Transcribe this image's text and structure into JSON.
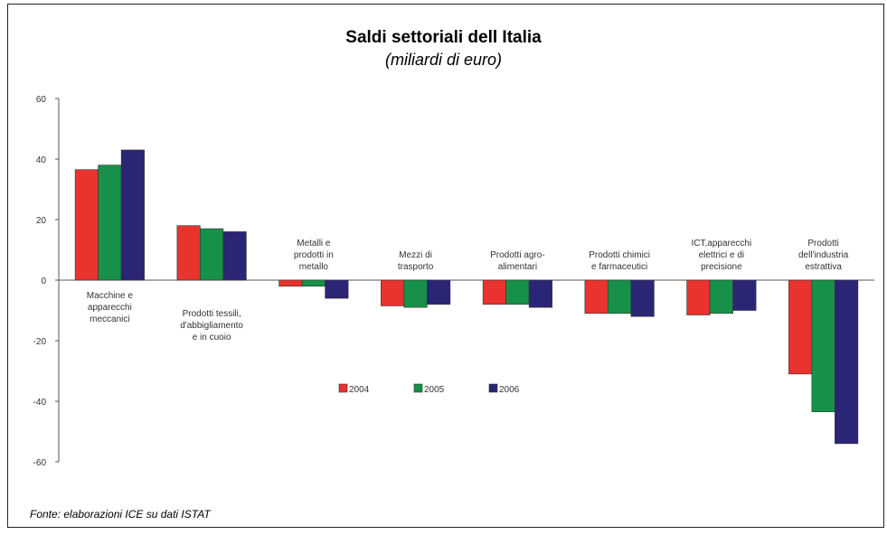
{
  "chart_data": {
    "type": "bar",
    "title": "Saldi settoriali dell Italia",
    "subtitle": "(miliardi di euro)",
    "source": "Fonte: elaborazioni ICE su dati ISTAT",
    "ylim": [
      -60,
      60
    ],
    "yticks": [
      -60,
      -40,
      -20,
      0,
      20,
      40,
      60
    ],
    "categories": [
      [
        "Macchine e",
        "apparecchi",
        "meccanici"
      ],
      [
        "Prodotti tessili,",
        "d'abbigliamento",
        "e in cuoio"
      ],
      [
        "Metalli e",
        "prodotti in",
        "metallo"
      ],
      [
        "Mezzi di",
        "trasporto"
      ],
      [
        "Prodotti agro-",
        "alimentari"
      ],
      [
        "Prodotti chimici",
        "e farmaceutici"
      ],
      [
        "ICT,apparecchi",
        "elettrici e di",
        "precisione"
      ],
      [
        "Prodotti",
        "dell'industria",
        "estrattiva"
      ]
    ],
    "series": [
      {
        "name": "2004",
        "color": "#e8332f",
        "values": [
          36.5,
          18,
          -2,
          -8.5,
          -8,
          -11,
          -11.5,
          -31
        ]
      },
      {
        "name": "2005",
        "color": "#17904a",
        "values": [
          38,
          17,
          -2,
          -9,
          -8,
          -11,
          -11,
          -43.5
        ]
      },
      {
        "name": "2006",
        "color": "#2a2574",
        "values": [
          43,
          16,
          -6,
          -8,
          -9,
          -12,
          -10,
          -54
        ]
      }
    ],
    "grid": false,
    "legend": "center"
  }
}
